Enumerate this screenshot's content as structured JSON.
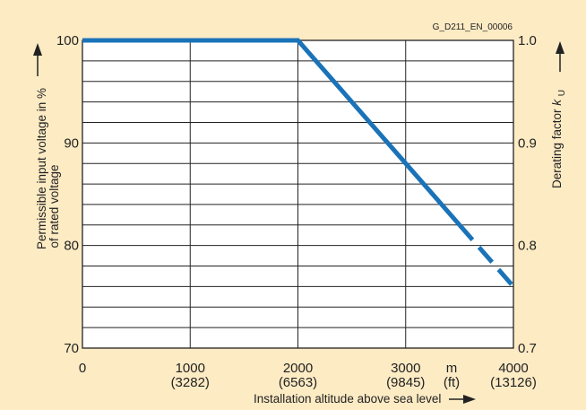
{
  "chart_data": {
    "type": "line",
    "figure_id": "G_D211_EN_00006",
    "xlabel": "Installation altitude above sea level",
    "ylabel_left": [
      "Permissible input voltage in %",
      "of rated voltage"
    ],
    "ylabel_right": "Derating factor",
    "ylabel_right_symbol": "k",
    "ylabel_right_subscript": "U",
    "xlim": [
      0,
      4000
    ],
    "ylim": [
      70,
      100
    ],
    "x_ticks": [
      {
        "value": 0,
        "label": "0",
        "sub": ""
      },
      {
        "value": 1000,
        "label": "1000",
        "sub": "(3282)"
      },
      {
        "value": 2000,
        "label": "2000",
        "sub": "(6563)"
      },
      {
        "value": 3000,
        "label": "3000",
        "sub": "(9845)"
      },
      {
        "value": 4000,
        "label": "4000",
        "sub": "(13126)"
      }
    ],
    "x_units": {
      "primary": "m",
      "secondary": "(ft)"
    },
    "y_ticks_left": [
      {
        "value": 70,
        "label": "70"
      },
      {
        "value": 80,
        "label": "80"
      },
      {
        "value": 90,
        "label": "90"
      },
      {
        "value": 100,
        "label": "100"
      }
    ],
    "y_ticks_right": [
      {
        "value": 70,
        "label": "0.7"
      },
      {
        "value": 80,
        "label": "0.8"
      },
      {
        "value": 90,
        "label": "0.9"
      },
      {
        "value": 100,
        "label": "1.0"
      }
    ],
    "series": [
      {
        "style": "solid",
        "color": "#1a73b8",
        "points": [
          [
            0,
            100
          ],
          [
            2000,
            100
          ],
          [
            3000,
            88
          ],
          [
            3500,
            82
          ]
        ]
      },
      {
        "style": "dashed",
        "color": "#1a73b8",
        "points": [
          [
            3500,
            82
          ],
          [
            4000,
            76
          ]
        ]
      }
    ],
    "grid": true,
    "colors": {
      "background": "#fdebc4",
      "plot": "#ffffff",
      "line": "#1a73b8",
      "grid": "#222222"
    }
  }
}
